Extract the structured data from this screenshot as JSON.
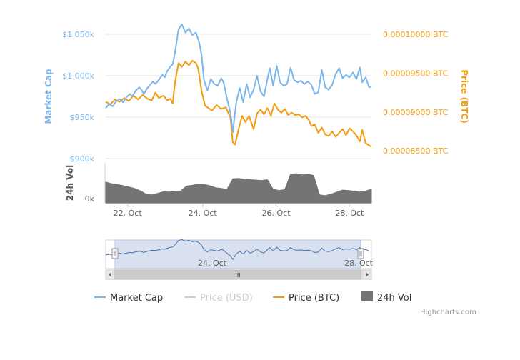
{
  "chart_data": {
    "type": "line",
    "x": [
      "22. Oct",
      "24. Oct",
      "26. Oct",
      "28. Oct"
    ],
    "axes": {
      "market_cap": {
        "title": "Market Cap",
        "tick_labels": [
          "$900k",
          "$950k",
          "$1 000k",
          "$1 050k"
        ],
        "ticks": [
          900,
          950,
          1000,
          1050
        ],
        "range": [
          900,
          1050
        ]
      },
      "price_btc": {
        "title": "Price (BTC)",
        "tick_labels": [
          "0.00008500 BTC",
          "0.00009000 BTC",
          "0.00009500 BTC",
          "0.00010000 BTC"
        ],
        "ticks": [
          8.5e-05,
          9e-05,
          9.5e-05,
          0.0001
        ],
        "range": [
          8.4e-05,
          0.0001
        ]
      },
      "volume": {
        "title": "24h Vol",
        "tick_labels": [
          "0k"
        ],
        "range": [
          0,
          100
        ]
      }
    },
    "series": [
      {
        "name": "Market Cap",
        "color": "#7cb5ec",
        "points": [
          [
            0.0,
            961
          ],
          [
            0.3,
            966
          ],
          [
            0.6,
            963
          ],
          [
            0.9,
            969
          ],
          [
            1.2,
            972
          ],
          [
            1.5,
            968
          ],
          [
            1.8,
            974
          ],
          [
            2.1,
            978
          ],
          [
            2.3,
            975
          ],
          [
            2.6,
            982
          ],
          [
            2.9,
            986
          ],
          [
            3.1,
            983
          ],
          [
            3.3,
            978
          ],
          [
            3.6,
            985
          ],
          [
            3.9,
            990
          ],
          [
            4.1,
            993
          ],
          [
            4.3,
            990
          ],
          [
            4.6,
            995
          ],
          [
            4.9,
            1001
          ],
          [
            5.1,
            998
          ],
          [
            5.3,
            1005
          ],
          [
            5.6,
            1011
          ],
          [
            5.8,
            1014
          ],
          [
            6.0,
            1028
          ],
          [
            6.3,
            1056
          ],
          [
            6.6,
            1062
          ],
          [
            6.9,
            1052
          ],
          [
            7.2,
            1057
          ],
          [
            7.5,
            1049
          ],
          [
            7.8,
            1052
          ],
          [
            8.1,
            1040
          ],
          [
            8.3,
            1025
          ],
          [
            8.5,
            995
          ],
          [
            8.8,
            982
          ],
          [
            9.1,
            996
          ],
          [
            9.4,
            990
          ],
          [
            9.7,
            988
          ],
          [
            10.0,
            997
          ],
          [
            10.2,
            992
          ],
          [
            10.5,
            972
          ],
          [
            10.8,
            955
          ],
          [
            11.0,
            932
          ],
          [
            11.3,
            968
          ],
          [
            11.6,
            985
          ],
          [
            11.9,
            968
          ],
          [
            12.2,
            990
          ],
          [
            12.5,
            974
          ],
          [
            12.8,
            983
          ],
          [
            13.1,
            1000
          ],
          [
            13.4,
            981
          ],
          [
            13.7,
            975
          ],
          [
            14.0,
            996
          ],
          [
            14.2,
            1009
          ],
          [
            14.5,
            988
          ],
          [
            14.8,
            1012
          ],
          [
            15.1,
            992
          ],
          [
            15.4,
            988
          ],
          [
            15.7,
            990
          ],
          [
            16.0,
            1010
          ],
          [
            16.3,
            995
          ],
          [
            16.6,
            992
          ],
          [
            16.9,
            994
          ],
          [
            17.2,
            990
          ],
          [
            17.5,
            993
          ],
          [
            17.8,
            989
          ],
          [
            18.1,
            978
          ],
          [
            18.4,
            980
          ],
          [
            18.7,
            1007
          ],
          [
            19.0,
            986
          ],
          [
            19.3,
            983
          ],
          [
            19.6,
            989
          ],
          [
            19.9,
            1002
          ],
          [
            20.2,
            1009
          ],
          [
            20.5,
            997
          ],
          [
            20.8,
            1001
          ],
          [
            21.1,
            998
          ],
          [
            21.4,
            1004
          ],
          [
            21.7,
            996
          ],
          [
            22.0,
            1010
          ],
          [
            22.2,
            992
          ],
          [
            22.5,
            998
          ],
          [
            22.8,
            986
          ],
          [
            23.0,
            987
          ]
        ]
      },
      {
        "name": "Price (USD)",
        "color": "#cccccc",
        "points": []
      },
      {
        "name": "Price (BTC)",
        "color": "#f39c12",
        "points": [
          [
            0.0,
            9.13e-05
          ],
          [
            0.4,
            9.1e-05
          ],
          [
            0.8,
            9.16e-05
          ],
          [
            1.2,
            9.13e-05
          ],
          [
            1.6,
            9.18e-05
          ],
          [
            2.0,
            9.14e-05
          ],
          [
            2.4,
            9.21e-05
          ],
          [
            2.8,
            9.16e-05
          ],
          [
            3.2,
            9.22e-05
          ],
          [
            3.6,
            9.17e-05
          ],
          [
            4.0,
            9.15e-05
          ],
          [
            4.3,
            9.25e-05
          ],
          [
            4.6,
            9.18e-05
          ],
          [
            5.0,
            9.21e-05
          ],
          [
            5.3,
            9.15e-05
          ],
          [
            5.6,
            9.17e-05
          ],
          [
            5.8,
            9.11e-05
          ],
          [
            6.0,
            9.38e-05
          ],
          [
            6.3,
            9.63e-05
          ],
          [
            6.6,
            9.58e-05
          ],
          [
            6.9,
            9.65e-05
          ],
          [
            7.2,
            9.6e-05
          ],
          [
            7.5,
            9.66e-05
          ],
          [
            7.8,
            9.63e-05
          ],
          [
            8.0,
            9.56e-05
          ],
          [
            8.3,
            9.27e-05
          ],
          [
            8.6,
            9.08e-05
          ],
          [
            8.9,
            9.05e-05
          ],
          [
            9.2,
            9.02e-05
          ],
          [
            9.6,
            9.09e-05
          ],
          [
            10.0,
            9.04e-05
          ],
          [
            10.4,
            9.06e-05
          ],
          [
            10.8,
            8.92e-05
          ],
          [
            11.0,
            8.61e-05
          ],
          [
            11.2,
            8.58e-05
          ],
          [
            11.5,
            8.78e-05
          ],
          [
            11.8,
            8.95e-05
          ],
          [
            12.1,
            8.87e-05
          ],
          [
            12.4,
            8.95e-05
          ],
          [
            12.8,
            8.78e-05
          ],
          [
            13.1,
            8.98e-05
          ],
          [
            13.4,
            9.03e-05
          ],
          [
            13.7,
            8.97e-05
          ],
          [
            14.0,
            9.05e-05
          ],
          [
            14.3,
            8.95e-05
          ],
          [
            14.6,
            9.11e-05
          ],
          [
            14.9,
            9.03e-05
          ],
          [
            15.2,
            8.99e-05
          ],
          [
            15.5,
            9.04e-05
          ],
          [
            15.8,
            8.96e-05
          ],
          [
            16.1,
            8.99e-05
          ],
          [
            16.4,
            8.96e-05
          ],
          [
            16.7,
            8.97e-05
          ],
          [
            17.0,
            8.93e-05
          ],
          [
            17.3,
            8.95e-05
          ],
          [
            17.6,
            8.89e-05
          ],
          [
            17.8,
            8.82e-05
          ],
          [
            18.1,
            8.84e-05
          ],
          [
            18.4,
            8.73e-05
          ],
          [
            18.7,
            8.8e-05
          ],
          [
            19.0,
            8.71e-05
          ],
          [
            19.3,
            8.69e-05
          ],
          [
            19.6,
            8.75e-05
          ],
          [
            19.9,
            8.68e-05
          ],
          [
            20.2,
            8.73e-05
          ],
          [
            20.5,
            8.78e-05
          ],
          [
            20.8,
            8.7e-05
          ],
          [
            21.1,
            8.79e-05
          ],
          [
            21.4,
            8.75e-05
          ],
          [
            21.7,
            8.7e-05
          ],
          [
            22.0,
            8.62e-05
          ],
          [
            22.2,
            8.77e-05
          ],
          [
            22.5,
            8.6e-05
          ],
          [
            22.8,
            8.57e-05
          ],
          [
            23.0,
            8.55e-05
          ]
        ]
      },
      {
        "name": "24h Vol",
        "color": "#747474",
        "points": [
          [
            0.0,
            52
          ],
          [
            0.5,
            48
          ],
          [
            1.0,
            46
          ],
          [
            1.5,
            43
          ],
          [
            2.0,
            40
          ],
          [
            2.5,
            36
          ],
          [
            3.0,
            30
          ],
          [
            3.5,
            22
          ],
          [
            4.0,
            20
          ],
          [
            4.5,
            24
          ],
          [
            5.0,
            28
          ],
          [
            5.5,
            27
          ],
          [
            6.0,
            29
          ],
          [
            6.5,
            30
          ],
          [
            7.0,
            42
          ],
          [
            7.5,
            44
          ],
          [
            8.0,
            47
          ],
          [
            8.5,
            46
          ],
          [
            9.0,
            43
          ],
          [
            9.5,
            38
          ],
          [
            10.0,
            36
          ],
          [
            10.5,
            34
          ],
          [
            11.0,
            60
          ],
          [
            11.5,
            61
          ],
          [
            12.0,
            59
          ],
          [
            12.5,
            58
          ],
          [
            13.0,
            57
          ],
          [
            13.5,
            56
          ],
          [
            14.0,
            58
          ],
          [
            14.5,
            34
          ],
          [
            15.0,
            31
          ],
          [
            15.5,
            33
          ],
          [
            16.0,
            72
          ],
          [
            16.5,
            73
          ],
          [
            17.0,
            70
          ],
          [
            17.5,
            71
          ],
          [
            18.0,
            69
          ],
          [
            18.5,
            20
          ],
          [
            19.0,
            18
          ],
          [
            19.5,
            22
          ],
          [
            20.0,
            27
          ],
          [
            20.5,
            32
          ],
          [
            21.0,
            31
          ],
          [
            21.5,
            29
          ],
          [
            22.0,
            27
          ],
          [
            22.5,
            30
          ],
          [
            23.0,
            34
          ]
        ]
      }
    ],
    "x_range": [
      0,
      23
    ],
    "legend": {
      "placement": "bottom",
      "items": [
        {
          "label": "Market Cap",
          "color": "#7cb5ec",
          "enabled": true
        },
        {
          "label": "Price (USD)",
          "color": "#cccccc",
          "enabled": false
        },
        {
          "label": "Price (BTC)",
          "color": "#f39c12",
          "enabled": true
        },
        {
          "label": "24h Vol",
          "color": "#747474",
          "enabled": true
        }
      ]
    },
    "navigator": {
      "tick_labels": [
        "24. Oct",
        "28. Oct"
      ],
      "scrollbar_grip": "III"
    },
    "grid": true
  },
  "credits": "Highcharts.com"
}
